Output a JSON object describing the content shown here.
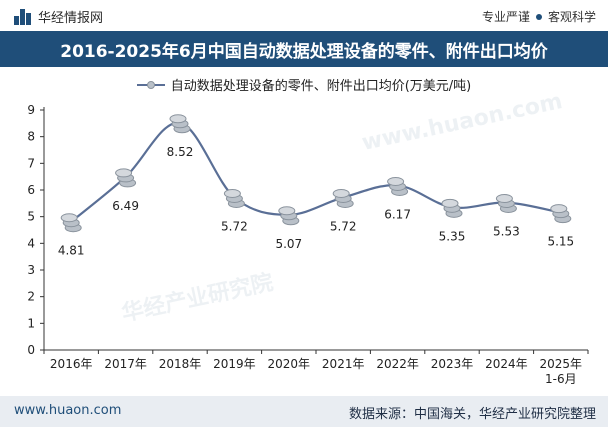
{
  "header": {
    "brand": "华经情报网",
    "slogan_left": "专业严谨",
    "slogan_right": "客观科学"
  },
  "title": "2016-2025年6月中国自动数据处理设备的零件、附件出口均价",
  "footer": {
    "site": "www.huaon.com",
    "source": "数据来源：中国海关，华经产业研究院整理"
  },
  "watermark": {
    "brand": "华经产业研究院",
    "url": "www.huaon.com"
  },
  "colors": {
    "title_bg": "#1f4e79",
    "line": "#5a6f96",
    "footer_bg": "#e9edf2"
  },
  "chart_data": {
    "type": "line",
    "title": "2016-2025年6月中国自动数据处理设备的零件、附件出口均价",
    "categories": [
      "2016年",
      "2017年",
      "2018年",
      "2019年",
      "2020年",
      "2021年",
      "2022年",
      "2023年",
      "2024年",
      "2025年\n1-6月"
    ],
    "series": [
      {
        "name": "自动数据处理设备的零件、附件出口均价(万美元/吨)",
        "values": [
          4.81,
          6.49,
          8.52,
          5.72,
          5.07,
          5.72,
          6.17,
          5.35,
          5.53,
          5.15
        ]
      }
    ],
    "data_labels": [
      "4.81",
      "6.49",
      "8.52",
      "5.72",
      "5.07",
      "5.72",
      "6.17",
      "5.35",
      "5.53",
      "5.15"
    ],
    "ylim": [
      0,
      9
    ],
    "yticks": [
      0,
      1,
      2,
      3,
      4,
      5,
      6,
      7,
      8,
      9
    ],
    "xlabel": "",
    "ylabel": "",
    "legend": "top-center",
    "grid": false
  }
}
